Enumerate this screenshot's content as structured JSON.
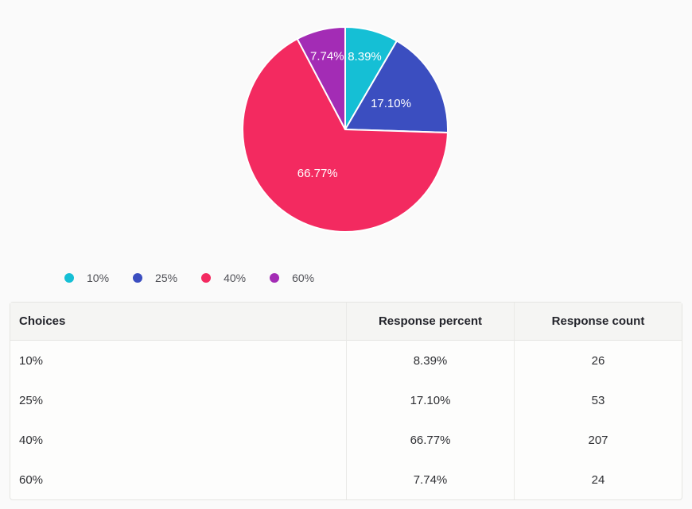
{
  "page": {
    "background": "#fafafa"
  },
  "chart_data": {
    "type": "pie",
    "title": "",
    "start_angle_deg": 0,
    "direction": "clockwise",
    "label_color": "#ffffff",
    "legend_position": "bottom-left",
    "slices": [
      {
        "label": "10%",
        "percent": 8.39,
        "display": "8.39%",
        "count": 26,
        "color": "#15BFD5"
      },
      {
        "label": "25%",
        "percent": 17.1,
        "display": "17.10%",
        "count": 53,
        "color": "#3B4EC0"
      },
      {
        "label": "40%",
        "percent": 66.77,
        "display": "66.77%",
        "count": 207,
        "color": "#F32A60"
      },
      {
        "label": "60%",
        "percent": 7.74,
        "display": "7.74%",
        "count": 24,
        "color": "#A32CB5"
      }
    ]
  },
  "table": {
    "columns": [
      {
        "label": "Choices"
      },
      {
        "label": "Response percent"
      },
      {
        "label": "Response count"
      }
    ],
    "rows": [
      {
        "choice": "10%",
        "percent": "8.39%",
        "count": "26"
      },
      {
        "choice": "25%",
        "percent": "17.10%",
        "count": "53"
      },
      {
        "choice": "40%",
        "percent": "66.77%",
        "count": "207"
      },
      {
        "choice": "60%",
        "percent": "7.74%",
        "count": "24"
      }
    ]
  }
}
